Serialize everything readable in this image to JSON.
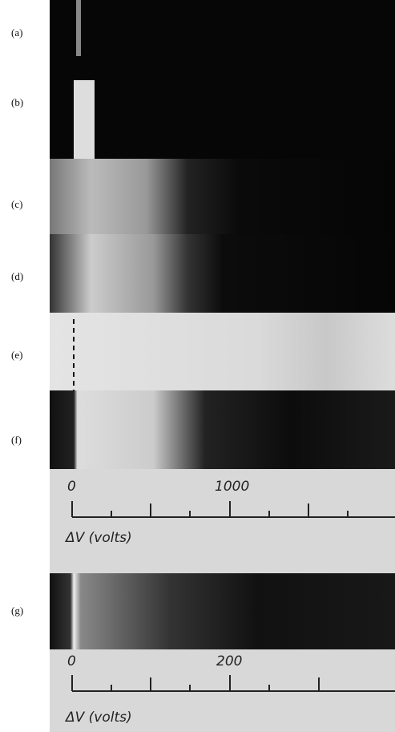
{
  "panels": [
    {
      "label": "(a)"
    },
    {
      "label": "(b)"
    },
    {
      "label": "(c)"
    },
    {
      "label": "(d)"
    },
    {
      "label": "(e)"
    },
    {
      "label": "(f)"
    },
    {
      "label": "(g)"
    }
  ],
  "scales": [
    {
      "tick_labels": [
        0,
        1000
      ],
      "axis_label": "ΔV (volts)"
    },
    {
      "tick_labels": [
        0,
        200
      ],
      "axis_label": "ΔV (volts)"
    }
  ]
}
